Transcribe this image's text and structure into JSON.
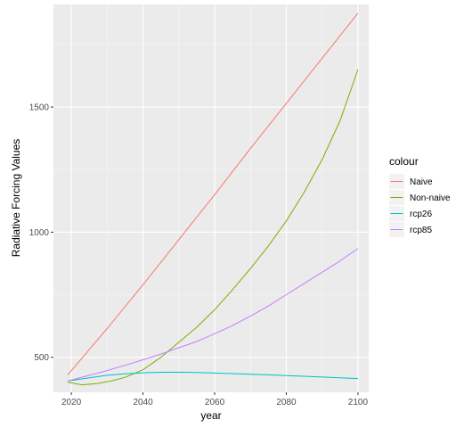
{
  "chart_data": {
    "type": "line",
    "xlabel": "year",
    "ylabel": "Radiative Forcing Values",
    "xlim": [
      2015,
      2103
    ],
    "ylim": [
      360,
      1910
    ],
    "x_ticks": [
      2020,
      2040,
      2060,
      2080,
      2100
    ],
    "y_ticks": [
      500,
      1000,
      1500
    ],
    "grid": true,
    "legend_title": "colour",
    "legend_position": "right",
    "series": [
      {
        "name": "Naive",
        "color": "#F8766D",
        "x": [
          2019,
          2030,
          2040,
          2050,
          2060,
          2070,
          2080,
          2090,
          2100
        ],
        "y": [
          430,
          615,
          790,
          970,
          1150,
          1335,
          1515,
          1695,
          1875
        ]
      },
      {
        "name": "Non-naive",
        "color": "#7CAE00",
        "x": [
          2019,
          2023,
          2027,
          2031,
          2035,
          2040,
          2045,
          2050,
          2055,
          2060,
          2065,
          2070,
          2075,
          2080,
          2085,
          2090,
          2095,
          2100
        ],
        "y": [
          400,
          390,
          395,
          405,
          420,
          450,
          500,
          560,
          620,
          690,
          770,
          855,
          945,
          1045,
          1160,
          1290,
          1445,
          1650
        ]
      },
      {
        "name": "rcp26",
        "color": "#00BFC4",
        "x": [
          2019,
          2025,
          2030,
          2035,
          2040,
          2045,
          2050,
          2055,
          2060,
          2065,
          2070,
          2075,
          2080,
          2085,
          2090,
          2095,
          2100
        ],
        "y": [
          405,
          418,
          428,
          434,
          438,
          440,
          440,
          439,
          437,
          435,
          432,
          430,
          427,
          424,
          421,
          418,
          415
        ]
      },
      {
        "name": "rcp85",
        "color": "#C77CFF",
        "x": [
          2019,
          2025,
          2030,
          2035,
          2040,
          2045,
          2050,
          2055,
          2060,
          2065,
          2070,
          2075,
          2080,
          2085,
          2090,
          2095,
          2100
        ],
        "y": [
          405,
          428,
          447,
          468,
          490,
          513,
          538,
          563,
          594,
          627,
          665,
          705,
          750,
          795,
          840,
          885,
          935
        ]
      }
    ]
  }
}
